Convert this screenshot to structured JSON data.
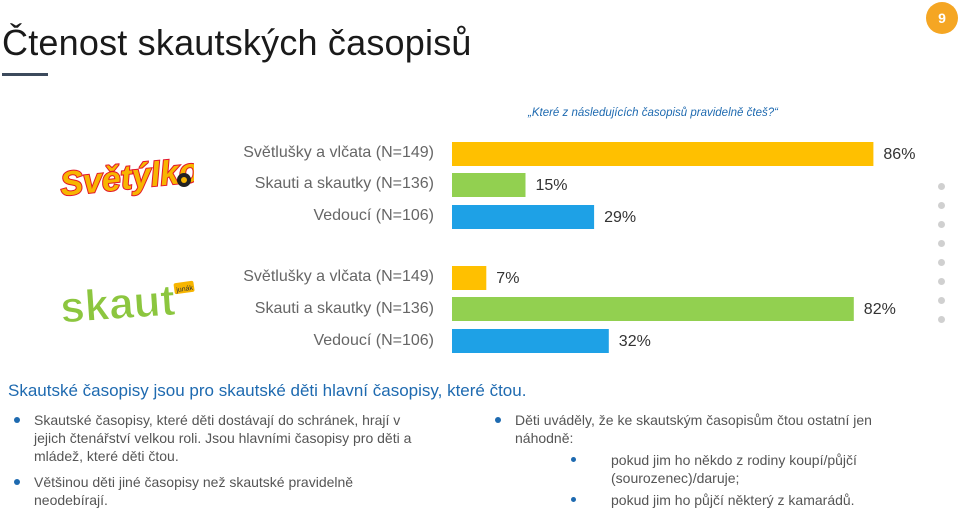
{
  "slide": {
    "title": "Čtenost skautských časopisů",
    "page_number": "9",
    "question": "„Které z následujících časopisů pravidelně čteš?“"
  },
  "logos": {
    "svetylko": "Světýlko",
    "skaut": "skaut",
    "skaut_badge": "junák"
  },
  "chart_data": {
    "type": "bar",
    "orientation": "horizontal",
    "title": "„Které z následujících časopisů pravidelně čteš?“",
    "xlim": [
      0,
      100
    ],
    "groups": [
      {
        "name": "Světýlko",
        "categories": [
          "Světlušky a vlčata (N=149)",
          "Skauti a skautky (N=136)",
          "Vedoucí (N=106)"
        ],
        "values": [
          86,
          15,
          29
        ],
        "labels": [
          "86%",
          "15%",
          "29%"
        ],
        "colors": [
          "#ffc000",
          "#92d050",
          "#1ea1e6"
        ]
      },
      {
        "name": "Skaut",
        "categories": [
          "Světlušky a vlčata (N=149)",
          "Skauti a skautky (N=136)",
          "Vedoucí (N=106)"
        ],
        "values": [
          7,
          82,
          32
        ],
        "labels": [
          "7%",
          "82%",
          "32%"
        ],
        "colors": [
          "#ffc000",
          "#92d050",
          "#1ea1e6"
        ]
      }
    ]
  },
  "summary": "Skautské časopisy jsou pro skautské děti hlavní časopisy, které čtou.",
  "left_bullets": [
    "Skautské časopisy, které děti dostávají do schránek, hrají v jejich čtenářství velkou roli. Jsou hlavními časopisy pro děti a mládež, které děti čtou.",
    "Většinou děti jiné časopisy než skautské pravidelně neodebírají."
  ],
  "right_bullet": {
    "text": "Děti uváděly, že ke skautským časopisům čtou ostatní jen náhodně:",
    "subitems": [
      "pokud jim ho někdo z rodiny koupí/půjčí (sourozenec)/daruje;",
      "pokud jim ho půjčí některý z kamarádů."
    ]
  }
}
